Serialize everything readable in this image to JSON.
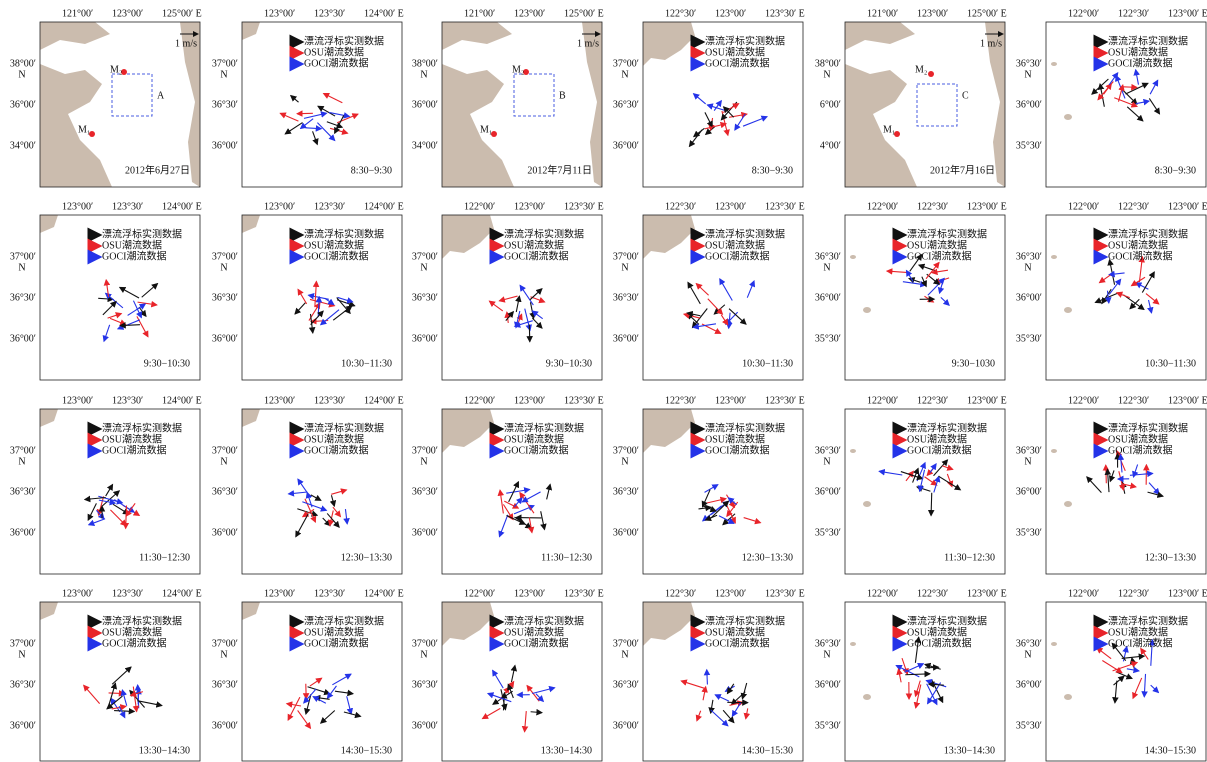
{
  "legend": [
    "漂流浮标实测数据",
    "OSU潮流数据",
    "GOCI潮流数据"
  ],
  "north": "N",
  "panels": [
    {
      "top": [
        "121°00′",
        "123°00′",
        "125°00′ E"
      ],
      "left": [
        "38°00′",
        "36°00′",
        "34°00′"
      ],
      "label": "2012年6月27日",
      "marks": [
        "M₁",
        "M₂",
        "A",
        "1 m/s"
      ]
    },
    {
      "top": [
        "123°00′",
        "123°30′",
        "124°00′ E"
      ],
      "left": [
        "37°00′",
        "36°30′",
        "36°00′"
      ],
      "label": "8:30−9:30"
    },
    {
      "top": [
        "121°00′",
        "123°00′",
        "125°00′ E"
      ],
      "left": [
        "38°00′",
        "36°00′",
        "34°00′"
      ],
      "label": "2012年7月11日",
      "marks": [
        "M₁",
        "M₂",
        "B",
        "1 m/s"
      ]
    },
    {
      "top": [
        "122°30′",
        "123°00′",
        "123°30′ E"
      ],
      "left": [
        "37°00′",
        "36°30′",
        "36°00′"
      ],
      "label": "8:30−9:30"
    },
    {
      "top": [
        "121°00′",
        "123°00′",
        "125°00′ E"
      ],
      "left": [
        "38°00′",
        "6°00′",
        "4°00′"
      ],
      "label": "2012年7月16日",
      "marks": [
        "M₁",
        "M₂",
        "C",
        "1 m/s"
      ]
    },
    {
      "top": [
        "122°00′",
        "122°30′",
        "123°00′ E"
      ],
      "left": [
        "36°30′",
        "36°00′",
        "35°30′"
      ],
      "label": "8:30−9:30"
    },
    {
      "top": [
        "123°00′",
        "123°30′",
        "124°00′ E"
      ],
      "left": [
        "37°00′",
        "36°30′",
        "36°00′"
      ],
      "label": "9:30−10:30"
    },
    {
      "top": [
        "123°00′",
        "123°30′",
        "124°00′ E"
      ],
      "left": [
        "37°00′",
        "36°30′",
        "36°00′"
      ],
      "label": "10:30−11:30"
    },
    {
      "top": [
        "122°00′",
        "123°00′",
        "123°30′ E"
      ],
      "left": [
        "37°00′",
        "36°30′",
        "36°00′"
      ],
      "label": "9:30−10:30"
    },
    {
      "top": [
        "122°30′",
        "123°00′",
        "123°30′ E"
      ],
      "left": [
        "37°00′",
        "36°30′",
        "36°00′"
      ],
      "label": "10:30−11:30"
    },
    {
      "top": [
        "122°00′",
        "122°30′",
        "123°00′ E"
      ],
      "left": [
        "36°30′",
        "36°00′",
        "35°30′"
      ],
      "label": "9:30−1030"
    },
    {
      "top": [
        "122°00′",
        "122°30′",
        "123°00′ E"
      ],
      "left": [
        "36°30′",
        "36°00′",
        "35°30′"
      ],
      "label": "10:30−11:30"
    },
    {
      "top": [
        "123°00′",
        "123°30′",
        "124°00′ E"
      ],
      "left": [
        "37°00′",
        "36°30′",
        "36°00′"
      ],
      "label": "11:30−12:30"
    },
    {
      "top": [
        "123°00′",
        "123°30′",
        "124°00′ E"
      ],
      "left": [
        "37°00′",
        "36°30′",
        "36°00′"
      ],
      "label": "12:30−13:30"
    },
    {
      "top": [
        "122°00′",
        "123°00′",
        "123°30′ E"
      ],
      "left": [
        "37°00′",
        "36°30′",
        "36°00′"
      ],
      "label": "11:30−12:30"
    },
    {
      "top": [
        "122°30′",
        "123°00′",
        "123°30′ E"
      ],
      "left": [
        "37°00′",
        "36°30′",
        "36°00′"
      ],
      "label": "12:30−13:30"
    },
    {
      "top": [
        "122°00′",
        "122°30′",
        "123°00′ E"
      ],
      "left": [
        "36°30′",
        "36°00′",
        "35°30′"
      ],
      "label": "11:30−12:30"
    },
    {
      "top": [
        "122°00′",
        "122°30′",
        "123°00′ E"
      ],
      "left": [
        "36°30′",
        "36°00′",
        "35°30′"
      ],
      "label": "12:30−13:30"
    },
    {
      "top": [
        "123°00′",
        "123°30′",
        "124°00′ E"
      ],
      "left": [
        "37°00′",
        "36°30′",
        "36°00′"
      ],
      "label": "13:30−14:30"
    },
    {
      "top": [
        "123°00′",
        "123°30′",
        "124°00′ E"
      ],
      "left": [
        "37°00′",
        "36°30′",
        "36°00′"
      ],
      "label": "14:30−15:30"
    },
    {
      "top": [
        "122°00′",
        "123°00′",
        "123°30′ E"
      ],
      "left": [
        "37°00′",
        "36°30′",
        "36°00′"
      ],
      "label": "13:30−14:30"
    },
    {
      "top": [
        "122°30′",
        "123°00′",
        "123°30′ E"
      ],
      "left": [
        "37°00′",
        "36°30′",
        "36°00′"
      ],
      "label": "14:30−15:30"
    },
    {
      "top": [
        "122°00′",
        "122°30′",
        "123°00′ E"
      ],
      "left": [
        "36°30′",
        "36°00′",
        "35°30′"
      ],
      "label": "13:30−14:30"
    },
    {
      "top": [
        "122°00′",
        "122°30′",
        "123°00′ E"
      ],
      "left": [
        "36°30′",
        "36°00′",
        "35°30′"
      ],
      "label": "14:30−15:30"
    }
  ]
}
